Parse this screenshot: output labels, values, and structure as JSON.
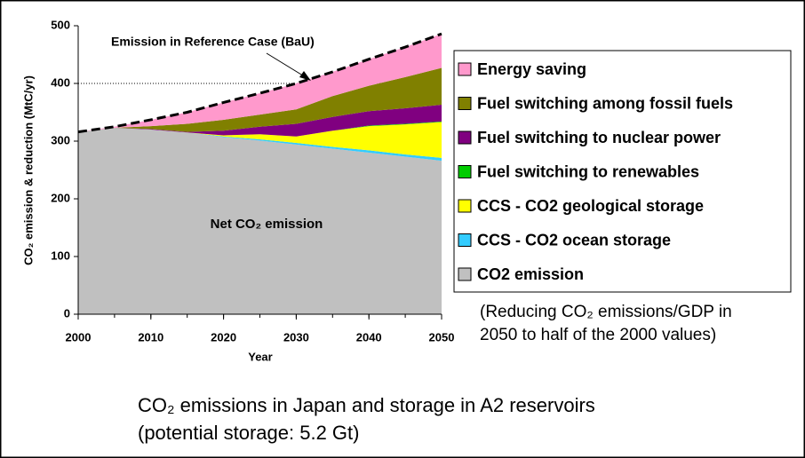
{
  "chart_data": {
    "type": "stacked_area",
    "caption": [
      "CO₂ emissions in Japan and storage in A2 reservoirs",
      "(potential storage: 5.2 Gt)"
    ],
    "note": [
      "(Reducing CO₂ emissions/GDP in",
      "2050 to half of the 2000 values)"
    ],
    "x_label": "Year",
    "y_label": "CO₂ emission & reduction (MtC/yr)",
    "annotations": {
      "bau": "Emission in Reference Case (BaU)",
      "net": "Net CO₂ emission"
    },
    "x": [
      2000,
      2005,
      2010,
      2015,
      2020,
      2025,
      2030,
      2035,
      2040,
      2045,
      2050
    ],
    "series": [
      {
        "name": "CO2 emission",
        "color": "#c0c0c0",
        "values": [
          316,
          323,
          320,
          315,
          307,
          301,
          294,
          287,
          280,
          273,
          266
        ]
      },
      {
        "name": "CCS - CO2 ocean storage",
        "color": "#33ccff",
        "values": [
          0,
          0,
          0,
          0,
          1,
          2,
          3,
          3,
          4,
          4,
          5
        ]
      },
      {
        "name": "CCS - CO2 geological storage",
        "color": "#ffff00",
        "values": [
          0,
          0,
          0,
          0,
          2,
          9,
          11,
          28,
          42,
          52,
          62
        ]
      },
      {
        "name": "Fuel switching to renewables",
        "color": "#00cc00",
        "values": [
          0,
          0,
          0,
          0,
          0,
          0,
          0,
          0,
          1,
          1,
          1
        ]
      },
      {
        "name": "Fuel switching to nuclear power",
        "color": "#800080",
        "values": [
          0,
          0,
          1,
          1,
          8,
          13,
          22,
          24,
          25,
          27,
          29
        ]
      },
      {
        "name": "Fuel switching among fossil fuels",
        "color": "#808000",
        "values": [
          0,
          0,
          5,
          14,
          19,
          21,
          25,
          36,
          44,
          54,
          64
        ]
      },
      {
        "name": "Energy saving",
        "color": "#ff99cc",
        "values": [
          0,
          2,
          11,
          20,
          30,
          37,
          45,
          42,
          46,
          52,
          59
        ]
      }
    ],
    "xlim": [
      2000,
      2050
    ],
    "xticks": [
      2000,
      2010,
      2020,
      2030,
      2040,
      2050
    ],
    "ylim": [
      0,
      500
    ],
    "yticks": [
      0,
      100,
      200,
      300,
      400,
      500
    ],
    "reference_lines": [
      400
    ]
  }
}
